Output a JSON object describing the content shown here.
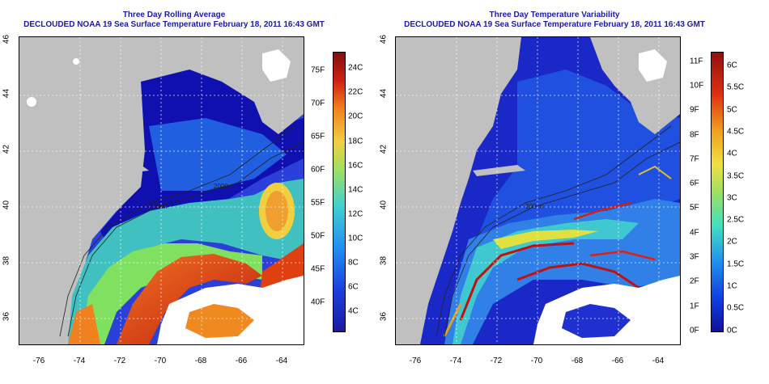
{
  "left_panel": {
    "title_line1": "Three Day Rolling Average",
    "title_line2": "DECLOUDED NOAA 19 Sea Surface Temperature February 18, 2011 16:43 GMT",
    "colorbar_F_labels": [
      "75F",
      "70F",
      "65F",
      "60F",
      "55F",
      "50F",
      "45F",
      "40F"
    ],
    "colorbar_C_labels": [
      "24C",
      "22C",
      "20C",
      "18C",
      "16C",
      "14C",
      "12C",
      "10C",
      "8C",
      "6C",
      "4C"
    ],
    "contour_labels": [
      "200 m",
      "2000 m"
    ],
    "colors": {
      "scale_low": "#1a1aa0",
      "scale_mid": "#40d0d0",
      "scale_high": "#a01010"
    }
  },
  "right_panel": {
    "title_line1": "Three Day Temperature Variability",
    "title_line2": "DECLOUDED NOAA 19 Sea Surface Temperature February 18, 2011 16:43 GMT",
    "colorbar_F_labels": [
      "11F",
      "10F",
      "9F",
      "8F",
      "7F",
      "6F",
      "5F",
      "4F",
      "3F",
      "2F",
      "1F",
      "0F"
    ],
    "colorbar_C_labels": [
      "6C",
      "5.5C",
      "5C",
      "4.5C",
      "4C",
      "3.5C",
      "3C",
      "2.5C",
      "2C",
      "1.5C",
      "1C",
      "0.5C",
      "0C"
    ],
    "contour_labels": [
      "200 m"
    ],
    "colors": {
      "scale_low": "#1010a0",
      "scale_mid": "#40e0c0",
      "scale_high": "#a01010"
    }
  },
  "axes": {
    "x_ticks": [
      "-76",
      "-74",
      "-72",
      "-70",
      "-68",
      "-66",
      "-64"
    ],
    "y_ticks": [
      "36",
      "38",
      "40",
      "42",
      "44",
      "46"
    ],
    "lon_range": [
      -77,
      -63
    ],
    "lat_range": [
      35,
      46
    ]
  },
  "colors": {
    "land": "#c0c0c0",
    "cloud_mask": "#ffffff",
    "title": "#1a1aa6"
  }
}
